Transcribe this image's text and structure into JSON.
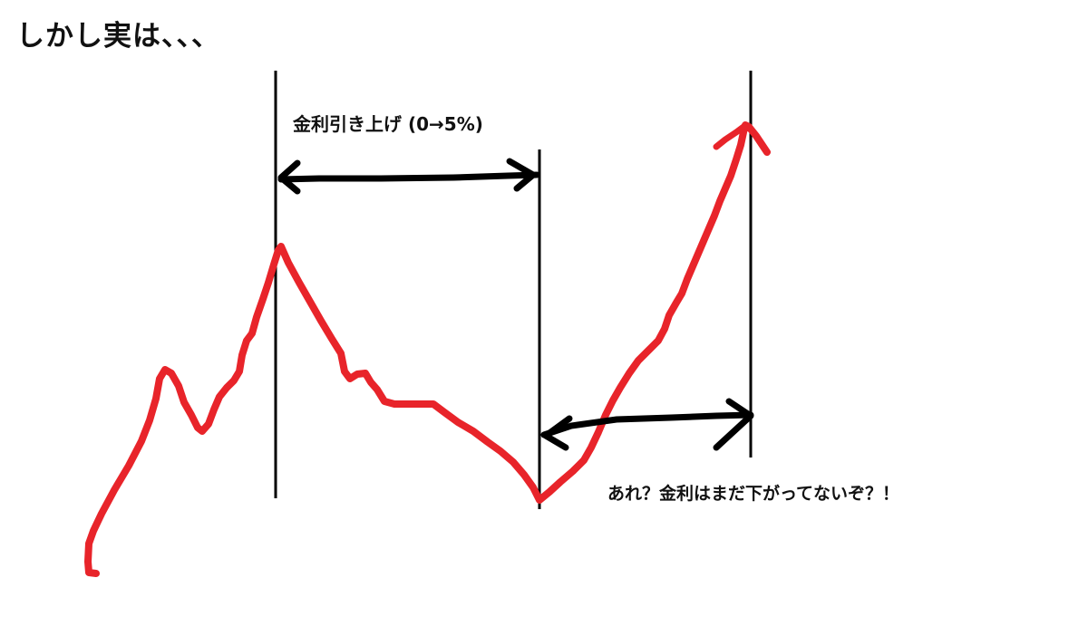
{
  "title": "しかし実は、、、",
  "annotations": {
    "rate_hike": "金利引き上げ (0→5%)",
    "question": "あれ？金利はまだ下がってないぞ？！"
  },
  "colors": {
    "price_line": "#e8242a",
    "ink": "#000000"
  }
}
